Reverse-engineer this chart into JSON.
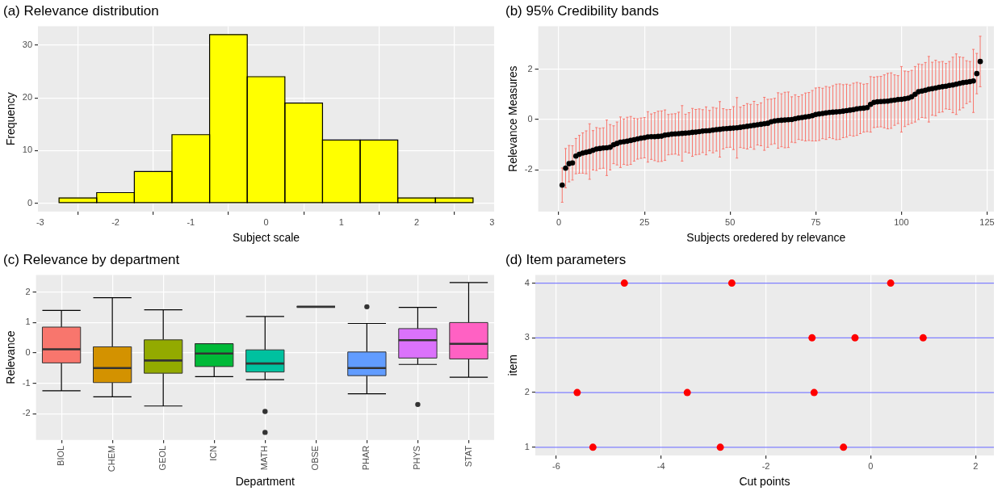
{
  "chart_data": [
    {
      "type": "histogram",
      "title": "(a) Relevance distribution",
      "xlabel": "Subject scale",
      "ylabel": "Frequency",
      "bins": [
        -2.75,
        -2.25,
        -1.75,
        -1.25,
        -0.75,
        -0.25,
        0.25,
        0.75,
        1.25,
        1.75,
        2.25,
        2.75
      ],
      "values": [
        1,
        2,
        6,
        13,
        32,
        24,
        19,
        12,
        12,
        1,
        1
      ],
      "color": "#ffff00",
      "xlim": [
        -3.03,
        3.03
      ],
      "xticks": [
        -3,
        -2,
        -1,
        0,
        1,
        2,
        3
      ],
      "ylim": [
        -1.6,
        33.6
      ],
      "yticks": [
        0,
        10,
        20,
        30
      ],
      "grid": true,
      "legend": false
    },
    {
      "type": "scatter",
      "title": "(b) 95% Credibility bands",
      "xlabel": "Subjects oredered by relevance",
      "ylabel": "Relevance Measures",
      "color": "#000000",
      "marker": "circle",
      "x": [
        1,
        2,
        3,
        4,
        5,
        6,
        7,
        8,
        9,
        10,
        11,
        12,
        13,
        14,
        15,
        16,
        17,
        18,
        19,
        20,
        21,
        22,
        23,
        24,
        25,
        26,
        27,
        28,
        29,
        30,
        31,
        32,
        33,
        34,
        35,
        36,
        37,
        38,
        39,
        40,
        41,
        42,
        43,
        44,
        45,
        46,
        47,
        48,
        49,
        50,
        51,
        52,
        53,
        54,
        55,
        56,
        57,
        58,
        59,
        60,
        61,
        62,
        63,
        64,
        65,
        66,
        67,
        68,
        69,
        70,
        71,
        72,
        73,
        74,
        75,
        76,
        77,
        78,
        79,
        80,
        81,
        82,
        83,
        84,
        85,
        86,
        87,
        88,
        89,
        90,
        91,
        92,
        93,
        94,
        95,
        96,
        97,
        98,
        99,
        100,
        101,
        102,
        103,
        104,
        105,
        106,
        107,
        108,
        109,
        110,
        111,
        112,
        113,
        114,
        115,
        116,
        117,
        118,
        119,
        120,
        121,
        122,
        123
      ],
      "values": [
        -2.6,
        -1.93,
        -1.75,
        -1.72,
        -1.45,
        -1.38,
        -1.33,
        -1.3,
        -1.27,
        -1.22,
        -1.17,
        -1.15,
        -1.13,
        -1.12,
        -1.1,
        -1.0,
        -0.95,
        -0.9,
        -0.88,
        -0.86,
        -0.83,
        -0.8,
        -0.77,
        -0.74,
        -0.72,
        -0.69,
        -0.68,
        -0.68,
        -0.67,
        -0.66,
        -0.62,
        -0.6,
        -0.58,
        -0.57,
        -0.56,
        -0.55,
        -0.54,
        -0.53,
        -0.51,
        -0.5,
        -0.48,
        -0.46,
        -0.45,
        -0.44,
        -0.42,
        -0.4,
        -0.39,
        -0.37,
        -0.36,
        -0.35,
        -0.34,
        -0.33,
        -0.31,
        -0.29,
        -0.27,
        -0.25,
        -0.23,
        -0.21,
        -0.19,
        -0.17,
        -0.15,
        -0.09,
        -0.06,
        -0.04,
        -0.03,
        -0.02,
        -0.01,
        0.0,
        0.03,
        0.06,
        0.08,
        0.1,
        0.12,
        0.15,
        0.2,
        0.22,
        0.24,
        0.26,
        0.28,
        0.29,
        0.3,
        0.31,
        0.33,
        0.35,
        0.37,
        0.39,
        0.42,
        0.44,
        0.45,
        0.47,
        0.6,
        0.68,
        0.7,
        0.71,
        0.72,
        0.73,
        0.75,
        0.77,
        0.79,
        0.8,
        0.82,
        0.85,
        0.9,
        1.0,
        1.1,
        1.13,
        1.16,
        1.2,
        1.22,
        1.25,
        1.28,
        1.3,
        1.32,
        1.35,
        1.37,
        1.4,
        1.43,
        1.46,
        1.48,
        1.5,
        1.53,
        1.82,
        2.3
      ],
      "errors": [
        0.68,
        0.78,
        0.72,
        0.68,
        0.7,
        0.75,
        0.8,
        0.85,
        1.1,
        0.78,
        0.85,
        0.8,
        0.8,
        1.1,
        0.9,
        0.75,
        0.85,
        1.0,
        0.9,
        0.95,
        0.95,
        0.85,
        0.8,
        0.8,
        0.8,
        1.0,
        0.9,
        0.95,
        1.0,
        1.0,
        1.0,
        0.8,
        0.8,
        0.8,
        0.85,
        1.1,
        0.75,
        0.8,
        0.95,
        0.9,
        0.9,
        0.85,
        0.95,
        0.8,
        0.9,
        0.85,
        1.1,
        0.8,
        0.75,
        0.75,
        0.85,
        1.2,
        0.8,
        0.85,
        0.9,
        0.85,
        0.95,
        0.8,
        0.85,
        1.05,
        0.95,
        0.9,
        0.9,
        1.1,
        1.05,
        1.1,
        1.1,
        0.9,
        0.95,
        0.85,
        0.9,
        0.95,
        0.95,
        1.0,
        1.05,
        1.05,
        1.0,
        1.05,
        1.0,
        1.05,
        1.1,
        1.1,
        1.05,
        1.05,
        1.0,
        1.05,
        1.05,
        1.0,
        0.95,
        0.95,
        1.1,
        1.0,
        1.0,
        1.0,
        1.05,
        1.1,
        1.1,
        1.0,
        0.95,
        1.3,
        1.1,
        1.05,
        1.05,
        1.1,
        1.1,
        1.05,
        1.1,
        1.3,
        1.05,
        1.1,
        1.0,
        1.0,
        0.9,
        0.95,
        1.1,
        1.2,
        1.05,
        1.0,
        0.85,
        0.8,
        1.25,
        0.8,
        1.0
      ],
      "xlim": [
        -6,
        127
      ],
      "xticks": [
        0,
        25,
        50,
        75,
        100,
        125
      ],
      "ylim": [
        -3.65,
        3.7
      ],
      "yticks": [
        -2,
        0,
        2
      ],
      "grid": true,
      "legend": false
    },
    {
      "type": "box",
      "title": "(c) Relevance by department",
      "xlabel": "Department",
      "ylabel": "Relevance",
      "categories": [
        "BIOL",
        "CHEM",
        "GEOL",
        "ICN",
        "MATH",
        "OBSE",
        "PHAR",
        "PHYS",
        "STAT"
      ],
      "colors": [
        "#f8766d",
        "#d39200",
        "#93aa00",
        "#00ba38",
        "#00c19f",
        "#000000",
        "#619cff",
        "#db72fb",
        "#ff61c3"
      ],
      "boxes": [
        {
          "low": -1.25,
          "q1": -0.33,
          "median": 0.12,
          "q3": 0.85,
          "high": 1.4
        },
        {
          "low": -1.45,
          "q1": -0.98,
          "median": -0.5,
          "q3": 0.2,
          "high": 1.82
        },
        {
          "low": -1.75,
          "q1": -0.67,
          "median": -0.25,
          "q3": 0.43,
          "high": 1.42
        },
        {
          "low": -0.78,
          "q1": -0.45,
          "median": -0.02,
          "q3": 0.3,
          "high": 0.3
        },
        {
          "low": -0.88,
          "q1": -0.63,
          "median": -0.35,
          "q3": 0.1,
          "high": 1.2,
          "outliers": [
            -1.93,
            -2.62
          ]
        },
        {
          "low": 1.52,
          "q1": 1.52,
          "median": 1.52,
          "q3": 1.52,
          "high": 1.52
        },
        {
          "low": -1.35,
          "q1": -0.75,
          "median": -0.5,
          "q3": 0.03,
          "high": 0.97,
          "outliers": [
            1.52
          ]
        },
        {
          "low": -0.38,
          "q1": -0.17,
          "median": 0.42,
          "q3": 0.8,
          "high": 1.5,
          "outliers": [
            -1.7
          ]
        },
        {
          "low": -0.8,
          "q1": -0.2,
          "median": 0.3,
          "q3": 1.0,
          "high": 2.32
        }
      ],
      "ylim": [
        -2.87,
        2.57
      ],
      "yticks": [
        -2,
        -1,
        0,
        1,
        2
      ],
      "grid": true,
      "legend": false
    },
    {
      "type": "scatter",
      "title": "(d) Item parameters",
      "xlabel": "Cut points",
      "ylabel": "item",
      "color": "#ff0000",
      "marker": "circle",
      "x": [
        -4.7,
        -2.65,
        0.38,
        -1.12,
        -0.3,
        1.0,
        -5.6,
        -3.5,
        -1.08,
        -5.3,
        -2.87,
        -0.52
      ],
      "values": [
        4,
        4,
        4,
        3,
        3,
        3,
        2,
        2,
        2,
        1,
        1,
        1
      ],
      "ref_lines": [
        {
          "axis": "y",
          "value": 1,
          "color": "#8080ff"
        },
        {
          "axis": "y",
          "value": 2,
          "color": "#8080ff"
        },
        {
          "axis": "y",
          "value": 3,
          "color": "#8080ff"
        },
        {
          "axis": "y",
          "value": 4,
          "color": "#8080ff"
        }
      ],
      "xlim": [
        -6.4,
        2.35
      ],
      "xticks": [
        -6,
        -4,
        -2,
        0,
        2
      ],
      "ylim": [
        0.85,
        4.15
      ],
      "yticks": [
        1,
        2,
        3,
        4
      ],
      "grid": "x",
      "legend": false
    }
  ]
}
